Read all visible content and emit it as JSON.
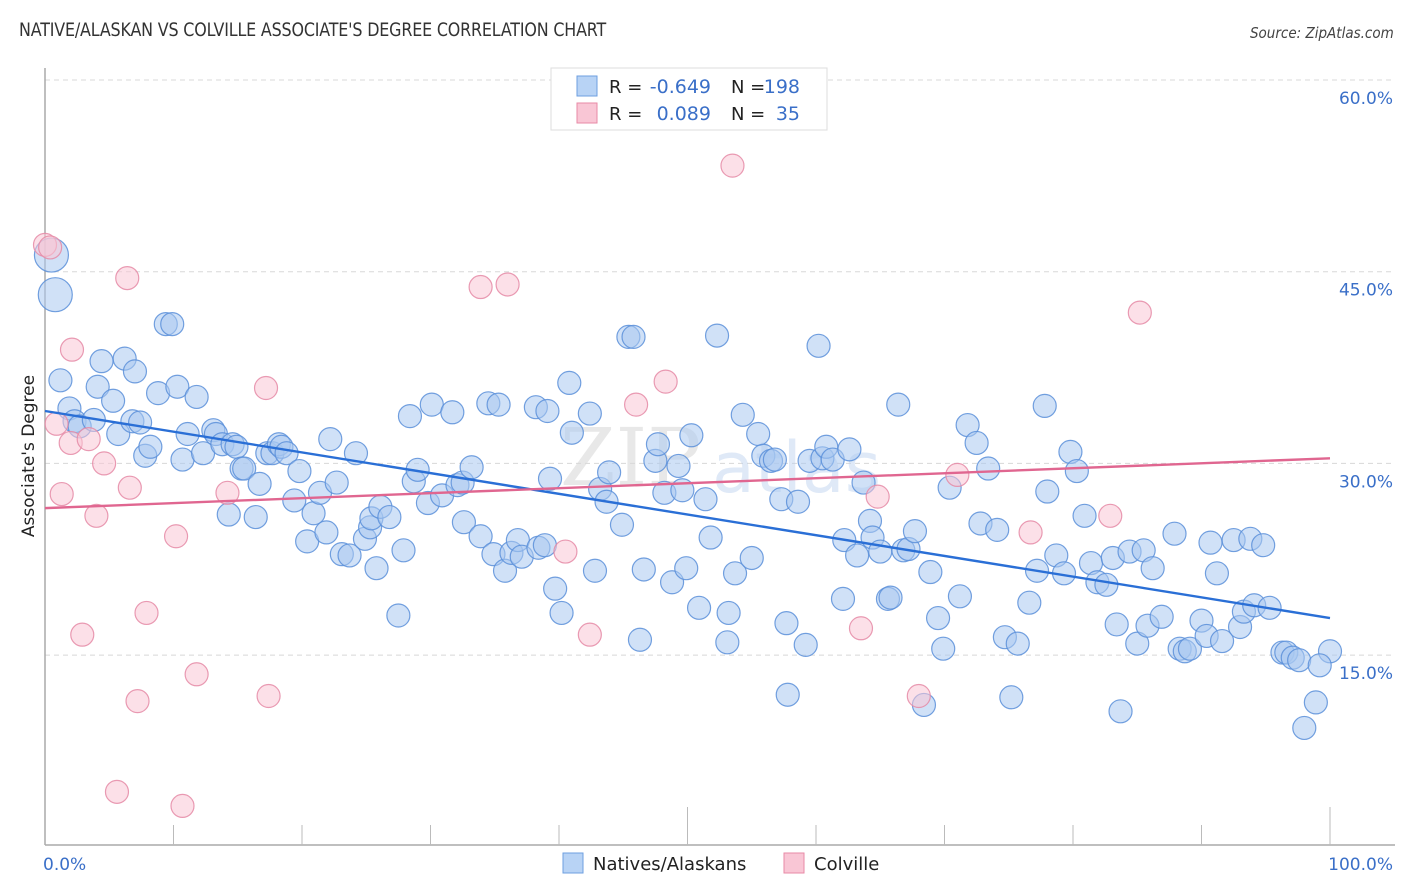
{
  "title": "NATIVE/ALASKAN VS COLVILLE ASSOCIATE'S DEGREE CORRELATION CHART",
  "source": "Source: ZipAtlas.com",
  "watermark": {
    "zip": "ZIP",
    "atlas": "atlas"
  },
  "legend_box": {
    "rows": [
      {
        "r_label": "R =",
        "r_value": "-0.649",
        "n_label": "N =",
        "n_value": "198",
        "color": "#b8d3f5",
        "border": "#6e9fe0"
      },
      {
        "r_label": "R =",
        "r_value": " 0.089",
        "n_label": "N =",
        "n_value": " 35",
        "color": "#f9c6d5",
        "border": "#e88aa6"
      }
    ]
  },
  "chart_data": {
    "type": "scatter",
    "title": "NATIVE/ALASKAN VS COLVILLE ASSOCIATE'S DEGREE CORRELATION CHART",
    "xlabel": "",
    "ylabel": "Associate's Degree",
    "xlim": [
      0,
      100
    ],
    "ylim": [
      0,
      62
    ],
    "x_tick_labels": [
      "0.0%",
      "100.0%"
    ],
    "y_ticks": [
      15,
      30,
      45,
      60
    ],
    "y_tick_labels": [
      "15.0%",
      "30.0%",
      "45.0%",
      "60.0%"
    ],
    "grid": true,
    "legend_position": "bottom-center",
    "series": [
      {
        "name": "Natives/Alaskans",
        "color": "#a9c8f0",
        "stroke": "#5b8fd9",
        "trend_color": "#2a6fd6",
        "r": -0.649,
        "n": 198,
        "trend": {
          "x": [
            0,
            100
          ],
          "y": [
            34.1,
            17.9
          ]
        },
        "points": [
          [
            0.5,
            46.3,
            "L"
          ],
          [
            0.8,
            43.2,
            "L"
          ],
          [
            1.2,
            36.5
          ],
          [
            1.9,
            34.3
          ],
          [
            2.3,
            33.3
          ],
          [
            2.7,
            32.9
          ],
          [
            3.8,
            33.4
          ],
          [
            4.1,
            36.0
          ],
          [
            4.4,
            38.0
          ],
          [
            5.3,
            34.9
          ],
          [
            5.7,
            32.3
          ],
          [
            6.2,
            38.2
          ],
          [
            7.0,
            37.2
          ],
          [
            6.8,
            33.3
          ],
          [
            7.4,
            33.2
          ],
          [
            7.8,
            30.6
          ],
          [
            8.2,
            31.3
          ],
          [
            8.8,
            35.5
          ],
          [
            9.4,
            40.9
          ],
          [
            9.9,
            40.9
          ],
          [
            10.3,
            36.0
          ],
          [
            10.7,
            30.3
          ],
          [
            11.1,
            32.3
          ],
          [
            11.8,
            35.2
          ],
          [
            12.3,
            30.8
          ],
          [
            13.1,
            32.6
          ],
          [
            13.3,
            32.3
          ],
          [
            13.8,
            31.5
          ],
          [
            14.3,
            26.0
          ],
          [
            14.6,
            31.5
          ],
          [
            14.9,
            31.3
          ],
          [
            15.3,
            29.6
          ],
          [
            15.5,
            29.6
          ],
          [
            16.4,
            25.8
          ],
          [
            16.7,
            28.4
          ],
          [
            17.3,
            30.8
          ],
          [
            17.7,
            30.8
          ],
          [
            18.2,
            31.5
          ],
          [
            18.4,
            31.3
          ],
          [
            18.8,
            30.8
          ],
          [
            19.4,
            27.1
          ],
          [
            19.8,
            29.4
          ],
          [
            20.4,
            23.9
          ],
          [
            20.9,
            26.1
          ],
          [
            21.4,
            27.7
          ],
          [
            21.9,
            24.6
          ],
          [
            22.2,
            31.9
          ],
          [
            22.7,
            28.5
          ],
          [
            23.1,
            22.9
          ],
          [
            23.7,
            22.8
          ],
          [
            24.2,
            30.8
          ],
          [
            24.9,
            24.1
          ],
          [
            25.3,
            25.0
          ],
          [
            25.4,
            25.7
          ],
          [
            25.8,
            21.8
          ],
          [
            26.1,
            26.6
          ],
          [
            26.8,
            25.8
          ],
          [
            27.5,
            18.1
          ],
          [
            27.9,
            23.2
          ],
          [
            28.4,
            33.7
          ],
          [
            28.7,
            28.6
          ],
          [
            29.0,
            29.5
          ],
          [
            29.8,
            26.9
          ],
          [
            30.1,
            34.6
          ],
          [
            30.9,
            27.5
          ],
          [
            31.7,
            34.0
          ],
          [
            32.1,
            28.3
          ],
          [
            32.5,
            28.5
          ],
          [
            32.6,
            25.4
          ],
          [
            33.2,
            29.7
          ],
          [
            33.9,
            24.3
          ],
          [
            34.5,
            34.7
          ],
          [
            34.9,
            22.9
          ],
          [
            35.3,
            34.6
          ],
          [
            35.8,
            21.6
          ],
          [
            36.3,
            23.0
          ],
          [
            36.8,
            24.0
          ],
          [
            37.1,
            22.7
          ],
          [
            38.2,
            34.4
          ],
          [
            38.4,
            23.4
          ],
          [
            38.9,
            23.6
          ],
          [
            39.1,
            34.1
          ],
          [
            39.3,
            28.8
          ],
          [
            39.7,
            20.2
          ],
          [
            40.2,
            18.3
          ],
          [
            40.8,
            36.3
          ],
          [
            41.0,
            32.4
          ],
          [
            42.4,
            33.9
          ],
          [
            42.8,
            21.6
          ],
          [
            43.2,
            28.0
          ],
          [
            43.7,
            27.0
          ],
          [
            43.9,
            29.3
          ],
          [
            44.9,
            25.2
          ],
          [
            45.4,
            39.9
          ],
          [
            45.8,
            39.9
          ],
          [
            46.3,
            16.2
          ],
          [
            46.6,
            21.7
          ],
          [
            47.5,
            30.2
          ],
          [
            47.7,
            31.5
          ],
          [
            48.2,
            27.7
          ],
          [
            48.8,
            20.7
          ],
          [
            49.3,
            29.8
          ],
          [
            49.6,
            27.9
          ],
          [
            49.9,
            21.8
          ],
          [
            50.3,
            32.2
          ],
          [
            50.9,
            18.7
          ],
          [
            51.4,
            27.2
          ],
          [
            51.8,
            24.2
          ],
          [
            52.3,
            40.0
          ],
          [
            53.1,
            16.0
          ],
          [
            53.2,
            18.3
          ],
          [
            53.7,
            21.4
          ],
          [
            54.3,
            33.8
          ],
          [
            55.0,
            22.6
          ],
          [
            55.5,
            32.3
          ],
          [
            55.9,
            30.6
          ],
          [
            56.5,
            30.2
          ],
          [
            56.8,
            30.3
          ],
          [
            57.3,
            27.2
          ],
          [
            57.7,
            17.5
          ],
          [
            57.8,
            11.9
          ],
          [
            58.6,
            27.0
          ],
          [
            59.2,
            15.8
          ],
          [
            59.5,
            30.2
          ],
          [
            60.2,
            39.2
          ],
          [
            60.5,
            30.4
          ],
          [
            60.8,
            31.3
          ],
          [
            61.3,
            30.3
          ],
          [
            62.1,
            19.4
          ],
          [
            62.2,
            24.0
          ],
          [
            62.6,
            31.1
          ],
          [
            63.2,
            22.8
          ],
          [
            63.7,
            28.5
          ],
          [
            64.2,
            25.5
          ],
          [
            64.4,
            24.2
          ],
          [
            65.0,
            23.1
          ],
          [
            65.6,
            19.4
          ],
          [
            65.8,
            19.5
          ],
          [
            66.4,
            34.6
          ],
          [
            66.8,
            23.2
          ],
          [
            67.2,
            23.3
          ],
          [
            67.7,
            24.7
          ],
          [
            68.4,
            11.1
          ],
          [
            68.9,
            21.5
          ],
          [
            69.5,
            17.9
          ],
          [
            69.9,
            15.5
          ],
          [
            70.4,
            28.1
          ],
          [
            71.2,
            19.6
          ],
          [
            71.8,
            33.0
          ],
          [
            72.5,
            31.6
          ],
          [
            72.8,
            25.3
          ],
          [
            73.4,
            29.6
          ],
          [
            74.1,
            24.8
          ],
          [
            74.7,
            16.4
          ],
          [
            75.2,
            11.7
          ],
          [
            75.7,
            15.9
          ],
          [
            76.6,
            19.1
          ],
          [
            77.2,
            21.6
          ],
          [
            77.8,
            34.5
          ],
          [
            78.0,
            27.8
          ],
          [
            78.7,
            22.8
          ],
          [
            79.3,
            21.4
          ],
          [
            79.8,
            30.9
          ],
          [
            80.3,
            29.4
          ],
          [
            80.9,
            25.9
          ],
          [
            81.4,
            22.2
          ],
          [
            81.9,
            20.7
          ],
          [
            82.6,
            20.5
          ],
          [
            83.1,
            22.6
          ],
          [
            83.4,
            17.4
          ],
          [
            83.7,
            10.6
          ],
          [
            84.4,
            23.1
          ],
          [
            85.0,
            15.9
          ],
          [
            85.5,
            23.2
          ],
          [
            85.8,
            17.3
          ],
          [
            86.2,
            21.8
          ],
          [
            86.9,
            18.0
          ],
          [
            87.9,
            24.5
          ],
          [
            88.3,
            15.5
          ],
          [
            88.7,
            15.3
          ],
          [
            89.1,
            15.5
          ],
          [
            90.0,
            17.7
          ],
          [
            90.4,
            16.5
          ],
          [
            90.7,
            23.8
          ],
          [
            91.2,
            21.4
          ],
          [
            91.6,
            16.1
          ],
          [
            92.5,
            24.0
          ],
          [
            93.0,
            17.2
          ],
          [
            93.3,
            18.4
          ],
          [
            93.8,
            24.1
          ],
          [
            94.1,
            18.9
          ],
          [
            94.8,
            23.6
          ],
          [
            95.3,
            18.7
          ],
          [
            96.3,
            15.2
          ],
          [
            96.6,
            15.2
          ],
          [
            97.1,
            14.8
          ],
          [
            97.6,
            14.6
          ],
          [
            98.0,
            9.3
          ],
          [
            98.9,
            11.3
          ],
          [
            100.0,
            15.3
          ],
          [
            99.2,
            14.2
          ]
        ]
      },
      {
        "name": "Colville",
        "color": "#f9c6d5",
        "stroke": "#e58aa6",
        "trend_color": "#e06690",
        "r": 0.089,
        "n": 35,
        "trend": {
          "x": [
            0,
            100
          ],
          "y": [
            26.5,
            30.4
          ]
        },
        "points": [
          [
            0.0,
            47.1
          ],
          [
            0.9,
            33.1
          ],
          [
            1.3,
            27.6
          ],
          [
            2.0,
            31.6
          ],
          [
            2.1,
            38.9
          ],
          [
            2.9,
            16.6
          ],
          [
            3.4,
            31.9
          ],
          [
            4.0,
            25.9
          ],
          [
            4.6,
            30.0
          ],
          [
            5.6,
            4.3
          ],
          [
            6.4,
            44.5
          ],
          [
            6.6,
            28.1
          ],
          [
            7.2,
            11.4
          ],
          [
            7.9,
            18.3
          ],
          [
            10.2,
            24.3
          ],
          [
            10.7,
            3.2
          ],
          [
            11.8,
            13.5
          ],
          [
            14.2,
            27.7
          ],
          [
            17.2,
            35.9
          ],
          [
            17.4,
            11.8
          ],
          [
            33.9,
            43.8
          ],
          [
            36.0,
            44.0
          ],
          [
            40.5,
            23.1
          ],
          [
            42.4,
            16.6
          ],
          [
            46.0,
            34.6
          ],
          [
            48.3,
            36.4
          ],
          [
            53.5,
            53.3
          ],
          [
            64.8,
            27.4
          ],
          [
            63.5,
            17.1
          ],
          [
            68.0,
            11.8
          ],
          [
            71.0,
            29.1
          ],
          [
            76.7,
            24.6
          ],
          [
            82.9,
            25.9
          ],
          [
            85.2,
            41.8
          ],
          [
            0.4,
            46.9
          ]
        ]
      }
    ]
  },
  "bottom_legend": [
    {
      "label": "Natives/Alaskans",
      "color": "#b8d3f5",
      "border": "#6e9fe0"
    },
    {
      "label": "Colville",
      "color": "#f9c6d5",
      "border": "#e88aa6"
    }
  ]
}
